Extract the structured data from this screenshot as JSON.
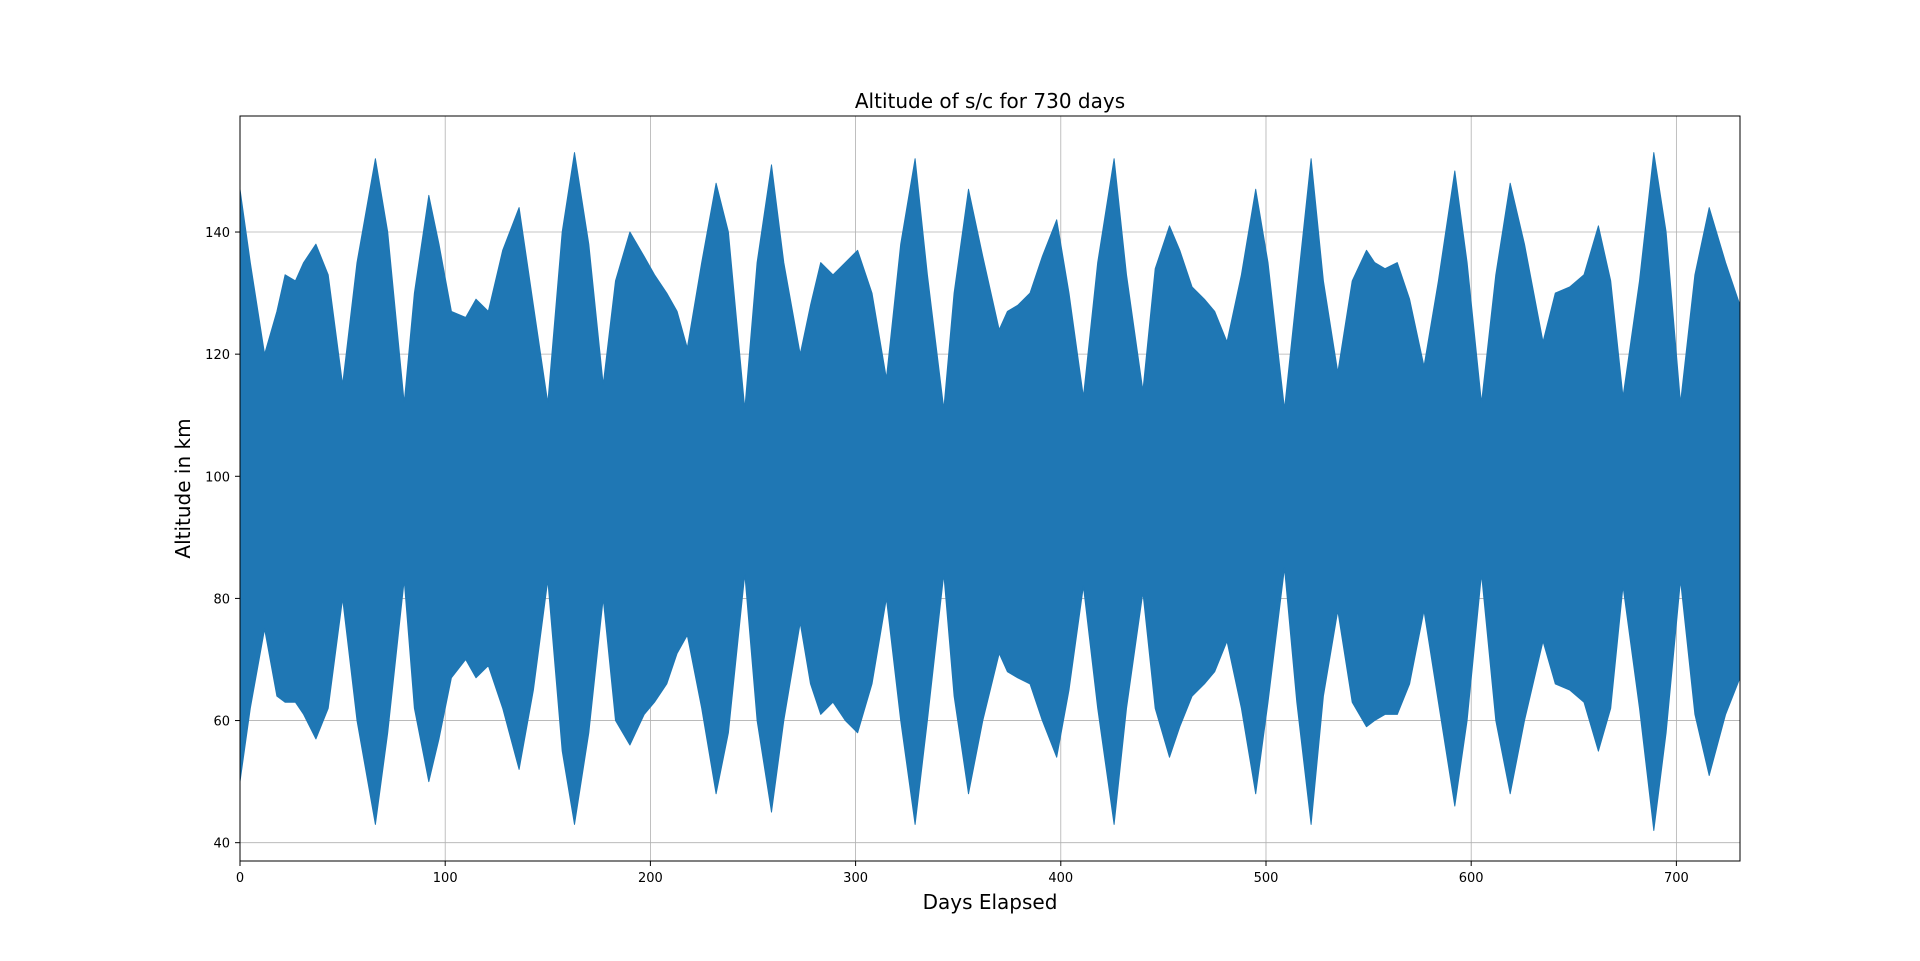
{
  "chart_data": {
    "type": "area",
    "title": "Altitude of s/c for 730 days",
    "xlabel": "Days Elapsed",
    "ylabel": "Altitude in km",
    "xlim": [
      0,
      731
    ],
    "ylim": [
      37,
      159
    ],
    "xticks": [
      0,
      100,
      200,
      300,
      400,
      500,
      600,
      700
    ],
    "yticks": [
      40,
      60,
      80,
      100,
      120,
      140
    ],
    "grid": true,
    "color": "#1f77b4",
    "series": [
      {
        "upper_envelope": {
          "x": [
            0,
            5,
            12,
            18,
            22,
            27,
            31,
            37,
            43,
            50,
            57,
            66,
            72,
            80,
            85,
            92,
            97,
            103,
            110,
            115,
            121,
            128,
            136,
            143,
            150,
            157,
            163,
            170,
            177,
            183,
            190,
            197,
            202,
            208,
            213,
            218,
            225,
            232,
            238,
            246,
            252,
            259,
            265,
            273,
            278,
            283,
            289,
            295,
            301,
            308,
            315,
            322,
            329,
            335,
            343,
            348,
            355,
            362,
            370,
            374,
            379,
            385,
            391,
            398,
            404,
            411,
            418,
            426,
            432,
            440,
            446,
            453,
            458,
            464,
            470,
            475,
            481,
            488,
            495,
            501,
            509,
            515,
            522,
            528,
            535,
            542,
            549,
            553,
            558,
            564,
            570,
            577,
            584,
            592,
            598,
            605,
            612,
            619,
            626,
            635,
            641,
            648,
            655,
            662,
            668,
            674,
            682,
            689,
            695,
            702,
            709,
            716,
            724,
            731
          ],
          "y": [
            147,
            135,
            120,
            127,
            133,
            132,
            135,
            138,
            133,
            115,
            135,
            152,
            140,
            112,
            130,
            146,
            138,
            127,
            126,
            129,
            127,
            137,
            144,
            128,
            112,
            140,
            153,
            138,
            115,
            132,
            140,
            136,
            133,
            130,
            127,
            121,
            135,
            148,
            140,
            111,
            135,
            151,
            135,
            120,
            128,
            135,
            133,
            135,
            137,
            130,
            116,
            138,
            152,
            133,
            111,
            130,
            147,
            136,
            124,
            127,
            128,
            130,
            136,
            142,
            130,
            113,
            135,
            152,
            133,
            114,
            134,
            141,
            137,
            131,
            129,
            127,
            122,
            133,
            147,
            135,
            111,
            130,
            152,
            132,
            117,
            132,
            137,
            135,
            134,
            135,
            129,
            118,
            132,
            150,
            135,
            112,
            133,
            148,
            138,
            122,
            130,
            131,
            133,
            141,
            132,
            113,
            132,
            153,
            140,
            112,
            133,
            144,
            135,
            128
          ]
        },
        "lower_envelope": {
          "x": [
            0,
            5,
            12,
            18,
            22,
            27,
            31,
            37,
            43,
            50,
            57,
            66,
            72,
            80,
            85,
            92,
            97,
            103,
            110,
            115,
            121,
            128,
            136,
            143,
            150,
            157,
            163,
            170,
            177,
            183,
            190,
            197,
            202,
            208,
            213,
            218,
            225,
            232,
            238,
            246,
            252,
            259,
            265,
            273,
            278,
            283,
            289,
            295,
            301,
            308,
            315,
            322,
            329,
            335,
            343,
            348,
            355,
            362,
            370,
            374,
            379,
            385,
            391,
            398,
            404,
            411,
            418,
            426,
            432,
            440,
            446,
            453,
            458,
            464,
            470,
            475,
            481,
            488,
            495,
            501,
            509,
            515,
            522,
            528,
            535,
            542,
            549,
            553,
            558,
            564,
            570,
            577,
            584,
            592,
            598,
            605,
            612,
            619,
            626,
            635,
            641,
            648,
            655,
            662,
            668,
            674,
            682,
            689,
            695,
            702,
            709,
            716,
            724,
            731
          ],
          "y": [
            50,
            62,
            75,
            64,
            63,
            63,
            61,
            57,
            62,
            80,
            60,
            43,
            58,
            83,
            62,
            50,
            57,
            67,
            70,
            67,
            69,
            62,
            52,
            65,
            83,
            55,
            43,
            58,
            80,
            60,
            56,
            61,
            63,
            66,
            71,
            74,
            62,
            48,
            58,
            84,
            60,
            45,
            60,
            76,
            66,
            61,
            63,
            60,
            58,
            66,
            80,
            60,
            43,
            60,
            84,
            64,
            48,
            60,
            71,
            68,
            67,
            66,
            60,
            54,
            65,
            82,
            62,
            43,
            62,
            81,
            62,
            54,
            59,
            64,
            66,
            68,
            73,
            62,
            48,
            63,
            85,
            63,
            43,
            64,
            78,
            63,
            59,
            60,
            61,
            61,
            66,
            78,
            63,
            46,
            60,
            84,
            60,
            48,
            60,
            73,
            66,
            65,
            63,
            55,
            62,
            82,
            62,
            42,
            58,
            83,
            61,
            51,
            61,
            67
          ]
        }
      }
    ]
  }
}
